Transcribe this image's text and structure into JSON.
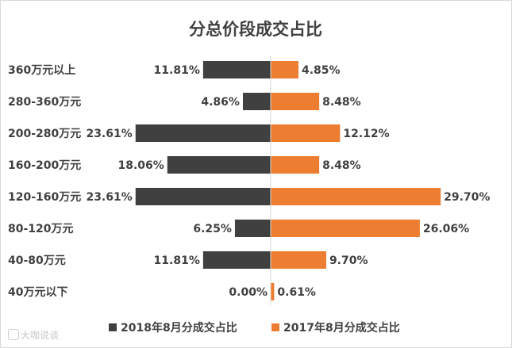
{
  "chart_data": {
    "type": "bar",
    "orientation": "horizontal-diverging",
    "title": "分总价段成交占比",
    "categories": [
      "360万元以上",
      "280-360万元",
      "200-280万元",
      "160-200万元",
      "120-160万元",
      "80-120万元",
      "40-80万元",
      "40万元以下"
    ],
    "series": [
      {
        "name": "2018年8月分成交占比",
        "color": "#404040",
        "direction": "left",
        "values": [
          11.81,
          4.86,
          23.61,
          18.06,
          23.61,
          6.25,
          11.81,
          0.0
        ],
        "labels": [
          "11.81%",
          "4.86%",
          "23.61%",
          "18.06%",
          "23.61%",
          "6.25%",
          "11.81%",
          "0.00%"
        ]
      },
      {
        "name": "2017年8月分成交占比",
        "color": "#ed7d31",
        "direction": "right",
        "values": [
          4.85,
          8.48,
          12.12,
          8.48,
          29.7,
          26.06,
          9.7,
          0.61
        ],
        "labels": [
          "4.85%",
          "8.48%",
          "12.12%",
          "8.48%",
          "29.70%",
          "26.06%",
          "9.70%",
          "0.61%"
        ]
      }
    ],
    "grid": false,
    "legend_position": "bottom"
  },
  "watermark": {
    "text": "大咖说谈"
  }
}
